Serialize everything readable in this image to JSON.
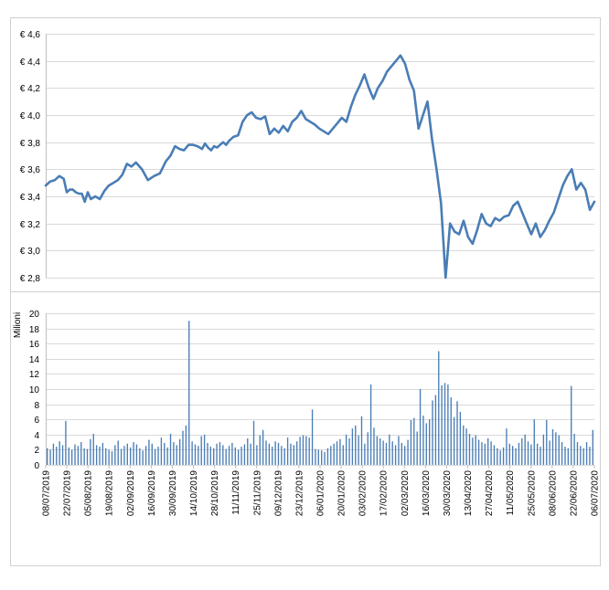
{
  "chart_data": [
    {
      "type": "line",
      "ylim": [
        2.8,
        4.6
      ],
      "yticks": [
        "€ 4,6",
        "€ 4,4",
        "€ 4,2",
        "€ 4,0",
        "€ 3,8",
        "€ 3,6",
        "€ 3,4",
        "€ 3,2",
        "€ 3,0",
        "€ 2,8"
      ],
      "grid": true,
      "color": "#4a7db5",
      "x": [
        0,
        3,
        6,
        9,
        12,
        14,
        16,
        18,
        20,
        22,
        24,
        26,
        28,
        30,
        33,
        36,
        39,
        42,
        45,
        48,
        51,
        54,
        57,
        60,
        64,
        68,
        72,
        76,
        80,
        83,
        86,
        89,
        92,
        95,
        98,
        101,
        104,
        106,
        108,
        110,
        112,
        114,
        116,
        118,
        120,
        122,
        125,
        128,
        131,
        134,
        137,
        140,
        143,
        146,
        149,
        152,
        155,
        158,
        161,
        164,
        167,
        170,
        173,
        176,
        179,
        182,
        185,
        188,
        191,
        194,
        197,
        200,
        203,
        206,
        209,
        212,
        215,
        218,
        221,
        224,
        227,
        230,
        233,
        236,
        239,
        242,
        245,
        248,
        251,
        254,
        257,
        260,
        263,
        266,
        269,
        272,
        275,
        278,
        281,
        284,
        287,
        290,
        293,
        296,
        299,
        302,
        305,
        308,
        311,
        314,
        317,
        320,
        323,
        326,
        329,
        332,
        335,
        338,
        341,
        344,
        347,
        350,
        353,
        356,
        359,
        362,
        365
      ],
      "y": [
        3.48,
        3.51,
        3.52,
        3.55,
        3.53,
        3.43,
        3.45,
        3.45,
        3.43,
        3.42,
        3.42,
        3.36,
        3.43,
        3.38,
        3.4,
        3.38,
        3.44,
        3.48,
        3.5,
        3.52,
        3.56,
        3.64,
        3.62,
        3.65,
        3.6,
        3.52,
        3.55,
        3.57,
        3.66,
        3.7,
        3.77,
        3.75,
        3.74,
        3.78,
        3.78,
        3.77,
        3.75,
        3.79,
        3.76,
        3.74,
        3.77,
        3.76,
        3.78,
        3.8,
        3.78,
        3.81,
        3.84,
        3.85,
        3.95,
        4.0,
        4.02,
        3.98,
        3.97,
        3.99,
        3.86,
        3.9,
        3.87,
        3.92,
        3.88,
        3.95,
        3.98,
        4.03,
        3.97,
        3.95,
        3.93,
        3.9,
        3.88,
        3.86,
        3.9,
        3.94,
        3.98,
        3.95,
        4.06,
        4.15,
        4.22,
        4.3,
        4.2,
        4.12,
        4.2,
        4.25,
        4.32,
        4.36,
        4.4,
        4.44,
        4.38,
        4.26,
        4.18,
        3.9,
        4.0,
        4.1,
        3.82,
        3.6,
        3.35,
        2.8,
        3.2,
        3.14,
        3.12,
        3.22,
        3.1,
        3.05,
        3.15,
        3.27,
        3.2,
        3.18,
        3.24,
        3.22,
        3.25,
        3.26,
        3.33,
        3.36,
        3.28,
        3.2,
        3.12,
        3.2,
        3.1,
        3.15,
        3.22,
        3.28,
        3.38,
        3.48,
        3.55,
        3.6,
        3.45,
        3.5,
        3.45,
        3.3,
        3.36
      ]
    },
    {
      "type": "bar",
      "ylabel": "Milioni",
      "ylim": [
        0,
        20
      ],
      "yticks": [
        "20",
        "18",
        "16",
        "14",
        "12",
        "10",
        "8",
        "6",
        "4",
        "2",
        "0"
      ],
      "x_tick_labels": [
        "08/07/2019",
        "22/07/2019",
        "05/08/2019",
        "19/08/2019",
        "02/09/2019",
        "16/09/2019",
        "30/09/2019",
        "14/10/2019",
        "28/10/2019",
        "11/11/2019",
        "25/11/2019",
        "09/12/2019",
        "23/12/2019",
        "06/01/2020",
        "20/01/2020",
        "03/02/2020",
        "17/02/2020",
        "02/03/2020",
        "16/03/2020",
        "30/03/2020",
        "13/04/2020",
        "27/04/2020",
        "11/05/2020",
        "25/05/2020",
        "08/06/2020",
        "22/06/2020",
        "06/07/2020"
      ],
      "color": "#4a7db5",
      "grid": true,
      "volumes": [
        2.2,
        2.0,
        2.8,
        2.4,
        3.1,
        2.6,
        5.8,
        2.3,
        2.0,
        2.7,
        2.5,
        3.0,
        2.2,
        2.1,
        3.4,
        4.1,
        2.6,
        2.4,
        2.9,
        2.2,
        2.0,
        1.8,
        2.6,
        3.2,
        2.1,
        2.5,
        2.8,
        2.3,
        3.0,
        2.7,
        2.2,
        1.9,
        2.5,
        3.3,
        2.8,
        2.1,
        2.4,
        3.6,
        2.9,
        2.3,
        4.1,
        3.0,
        2.6,
        3.4,
        4.5,
        5.2,
        19.0,
        3.1,
        2.7,
        2.5,
        3.8,
        4.0,
        2.9,
        2.4,
        2.2,
        2.8,
        3.0,
        2.6,
        2.1,
        2.5,
        2.9,
        2.3,
        2.0,
        2.4,
        2.7,
        3.5,
        2.8,
        5.8,
        2.6,
        3.9,
        4.6,
        3.2,
        2.8,
        2.4,
        3.1,
        2.9,
        2.5,
        2.2,
        3.6,
        2.8,
        2.6,
        3.1,
        3.7,
        3.9,
        3.8,
        3.6,
        7.3,
        2.1,
        2.0,
        1.9,
        1.7,
        2.2,
        2.5,
        2.8,
        3.1,
        3.4,
        2.6,
        4.0,
        3.5,
        4.8,
        5.2,
        3.9,
        6.4,
        2.8,
        4.3,
        10.6,
        4.9,
        3.8,
        3.5,
        3.2,
        2.9,
        4.0,
        3.1,
        2.6,
        3.8,
        2.9,
        2.5,
        3.3,
        5.9,
        6.2,
        4.4,
        10.0,
        6.5,
        5.5,
        6.0,
        8.5,
        9.2,
        15.0,
        10.5,
        10.8,
        10.6,
        8.9,
        6.3,
        8.4,
        7.0,
        5.2,
        4.8,
        4.1,
        3.6,
        3.9,
        3.3,
        3.0,
        2.8,
        3.5,
        3.1,
        2.6,
        2.2,
        1.9,
        2.3,
        4.8,
        2.8,
        2.5,
        2.2,
        2.9,
        3.5,
        4.0,
        3.1,
        2.7,
        6.0,
        2.8,
        2.4,
        4.0,
        5.9,
        3.2,
        4.7,
        4.3,
        3.9,
        3.0,
        2.4,
        2.2,
        10.4,
        4.1,
        3.0,
        2.5,
        2.2,
        3.0,
        2.4,
        4.6
      ]
    }
  ]
}
